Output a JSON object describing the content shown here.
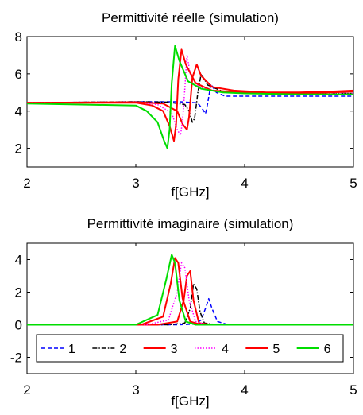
{
  "chart_data": [
    {
      "type": "line",
      "title": "Permittivité réelle (simulation)",
      "xlabel": "f[GHz]",
      "ylabel": "",
      "xlim": [
        2,
        5
      ],
      "ylim": [
        1,
        8
      ],
      "xticks": [
        "2",
        "3",
        "4",
        "5"
      ],
      "yticks": [
        "2",
        "4",
        "6",
        "8"
      ],
      "grid": false,
      "series": [
        {
          "name": "1",
          "color": "#0000ff",
          "dash": "5,3",
          "x": [
            2.0,
            3.0,
            3.4,
            3.55,
            3.58,
            3.62,
            3.64,
            3.66,
            3.69,
            3.74,
            3.82,
            4.0,
            4.5,
            5.0
          ],
          "y": [
            4.45,
            4.5,
            4.5,
            4.45,
            4.35,
            4.05,
            3.85,
            4.4,
            5.45,
            5.0,
            4.8,
            4.8,
            4.8,
            4.8
          ]
        },
        {
          "name": "2",
          "color": "#000000",
          "dash": "6,2,1.5,2",
          "x": [
            2.0,
            3.0,
            3.3,
            3.45,
            3.49,
            3.52,
            3.54,
            3.57,
            3.6,
            3.66,
            3.8,
            4.0,
            4.5,
            5.0
          ],
          "y": [
            4.45,
            4.5,
            4.48,
            4.35,
            4.0,
            3.4,
            3.6,
            5.0,
            6.0,
            5.4,
            5.05,
            5.0,
            4.95,
            4.95
          ]
        },
        {
          "name": "3",
          "color": "#ff0000",
          "dash": "",
          "x": [
            2.0,
            3.0,
            3.25,
            3.38,
            3.43,
            3.47,
            3.49,
            3.52,
            3.56,
            3.6,
            3.7,
            3.9,
            4.2,
            4.5,
            4.8,
            5.0
          ],
          "y": [
            4.45,
            4.48,
            4.4,
            4.0,
            3.3,
            3.0,
            3.7,
            5.8,
            6.5,
            5.9,
            5.3,
            5.1,
            5.0,
            5.0,
            5.05,
            5.1
          ]
        },
        {
          "name": "4",
          "color": "#ff00ff",
          "dash": "1.5,2",
          "x": [
            2.0,
            3.0,
            3.2,
            3.33,
            3.38,
            3.41,
            3.43,
            3.45,
            3.47,
            3.5,
            3.58,
            3.75,
            4.0,
            4.5,
            5.0
          ],
          "y": [
            4.45,
            4.45,
            4.35,
            3.9,
            3.0,
            2.7,
            3.5,
            5.2,
            7.0,
            6.0,
            5.3,
            5.05,
            5.0,
            4.95,
            4.95
          ]
        },
        {
          "name": "5",
          "color": "#ff0000",
          "dash": "",
          "x": [
            2.0,
            3.0,
            3.15,
            3.25,
            3.31,
            3.35,
            3.37,
            3.39,
            3.42,
            3.46,
            3.55,
            3.7,
            4.0,
            4.5,
            4.8,
            5.0
          ],
          "y": [
            4.45,
            4.45,
            4.3,
            4.0,
            3.2,
            2.4,
            3.3,
            5.7,
            7.3,
            6.5,
            5.5,
            5.1,
            5.0,
            4.95,
            5.0,
            5.05
          ]
        },
        {
          "name": "6",
          "color": "#00dd00",
          "dash": "",
          "x": [
            2.0,
            3.0,
            3.1,
            3.2,
            3.26,
            3.29,
            3.31,
            3.33,
            3.36,
            3.4,
            3.48,
            3.6,
            3.8,
            4.0,
            4.5,
            5.0
          ],
          "y": [
            4.4,
            4.3,
            4.0,
            3.4,
            2.4,
            2.0,
            3.0,
            5.5,
            7.5,
            6.7,
            5.6,
            5.2,
            5.0,
            4.95,
            4.9,
            4.9
          ]
        }
      ]
    },
    {
      "type": "line",
      "title": "Permittivité imaginaire (simulation)",
      "xlabel": "f[GHz]",
      "ylabel": "",
      "xlim": [
        2,
        5
      ],
      "ylim": [
        -3,
        5
      ],
      "xticks": [
        "2",
        "3",
        "4",
        "5"
      ],
      "yticks": [
        "-2",
        "0",
        "2",
        "4"
      ],
      "grid": false,
      "legend": "bottom",
      "series": [
        {
          "name": "1",
          "color": "#0000ff",
          "dash": "5,3",
          "x": [
            2.0,
            3.4,
            3.55,
            3.6,
            3.64,
            3.67,
            3.7,
            3.75,
            3.85,
            5.0
          ],
          "y": [
            0,
            0,
            0.05,
            0.3,
            1.0,
            1.6,
            1.0,
            0.2,
            0,
            0
          ]
        },
        {
          "name": "2",
          "color": "#000000",
          "dash": "6,2,1.5,2",
          "x": [
            2.0,
            3.3,
            3.45,
            3.5,
            3.53,
            3.56,
            3.59,
            3.63,
            3.75,
            5.0
          ],
          "y": [
            0,
            0,
            0.1,
            1.0,
            2.5,
            2.2,
            0.8,
            0.1,
            0,
            0
          ]
        },
        {
          "name": "3",
          "color": "#ff0000",
          "dash": "",
          "x": [
            2.0,
            3.2,
            3.38,
            3.44,
            3.47,
            3.5,
            3.53,
            3.58,
            3.7,
            5.0
          ],
          "y": [
            0,
            0,
            0.2,
            1.5,
            3.0,
            3.3,
            1.5,
            0.1,
            0,
            0
          ]
        },
        {
          "name": "4",
          "color": "#ff00ff",
          "dash": "1.5,2",
          "x": [
            2.0,
            3.1,
            3.3,
            3.38,
            3.42,
            3.45,
            3.49,
            3.55,
            3.65,
            5.0
          ],
          "y": [
            0,
            0,
            0.3,
            2.0,
            3.8,
            3.5,
            1.5,
            0.2,
            0,
            0
          ]
        },
        {
          "name": "5",
          "color": "#ff0000",
          "dash": "",
          "x": [
            2.0,
            3.05,
            3.25,
            3.32,
            3.36,
            3.39,
            3.43,
            3.5,
            3.6,
            5.0
          ],
          "y": [
            0,
            0,
            0.5,
            2.5,
            4.1,
            3.8,
            1.6,
            0.2,
            0,
            0
          ]
        },
        {
          "name": "6",
          "color": "#00dd00",
          "dash": "",
          "x": [
            2.0,
            3.0,
            3.2,
            3.28,
            3.33,
            3.36,
            3.4,
            3.46,
            3.55,
            5.0
          ],
          "y": [
            0,
            0,
            0.6,
            2.8,
            4.3,
            3.8,
            1.5,
            0.2,
            0,
            0
          ]
        }
      ]
    }
  ]
}
